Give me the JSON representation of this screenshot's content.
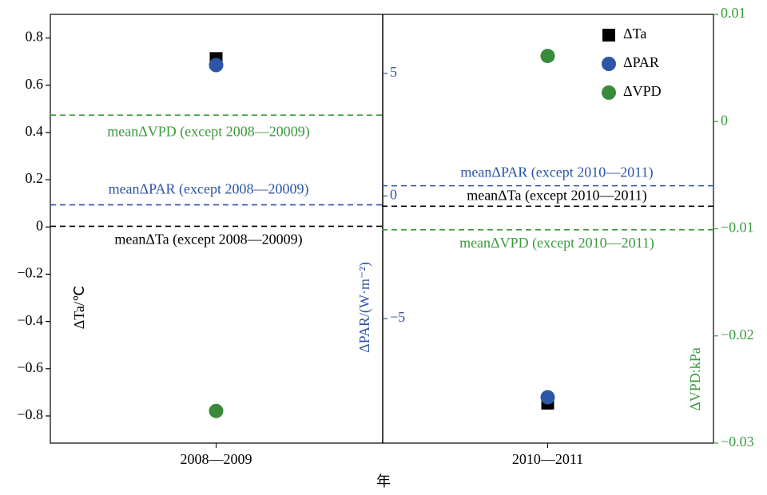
{
  "chart_data": {
    "type": "scatter",
    "categories": [
      "2008—2009",
      "2010—2011"
    ],
    "x_label": "年",
    "y_label": "ΔTa/℃",
    "y2_label": "ΔPAR/(W·m⁻²)",
    "y3_label": "ΔVPD:kPa",
    "ylim": [
      -0.915,
      0.9
    ],
    "yticks": [
      {
        "value": -0.8,
        "label": "−0.8"
      },
      {
        "value": -0.6,
        "label": "−0.6"
      },
      {
        "value": -0.4,
        "label": "−0.4"
      },
      {
        "value": -0.2,
        "label": "−0.2"
      },
      0,
      0.2,
      0.4,
      0.6,
      0.8
    ],
    "y2lim": [
      -10.08,
      7.41
    ],
    "y2ticks": [
      {
        "value": -5,
        "label": "−5"
      },
      0,
      5
    ],
    "y3lim": [
      -0.03,
      0.01
    ],
    "y3ticks": [
      {
        "value": -0.03,
        "label": "−0.03"
      },
      {
        "value": -0.02,
        "label": "−0.02"
      },
      {
        "value": -0.01,
        "label": "−0.01"
      },
      0,
      0.01
    ],
    "legend": "upper right",
    "series": [
      {
        "name": "ΔTa",
        "color": "#000000",
        "marker": "square",
        "axis": "y",
        "values": [
          0.713,
          -0.746
        ]
      },
      {
        "name": "ΔPAR",
        "color": "#2e56a6",
        "marker": "circle",
        "axis": "y2",
        "values": [
          5.34,
          -8.21
        ]
      },
      {
        "name": "ΔVPD",
        "color": "#3a8a3c",
        "marker": "circle",
        "axis": "y3",
        "values": [
          -0.027,
          0.00612
        ]
      }
    ],
    "mean_lines": [
      [
        {
          "label": "meanΔVPD (except 2008—20009)",
          "value": 0.0006,
          "axis": "y3",
          "color": "#3a9a3c"
        },
        {
          "label": "meanΔPAR (except 2008—20009)",
          "value": -0.36,
          "axis": "y2",
          "color": "#2e56a6"
        },
        {
          "label": "meanΔTa (except 2008—20009)",
          "value": 0.003,
          "axis": "y",
          "color": "#000000"
        }
      ],
      [
        {
          "label": "meanΔPAR (except 2010—2011)",
          "value": 0.42,
          "axis": "y2",
          "color": "#2e56a6"
        },
        {
          "label": "meanΔTa (except 2010—2011)",
          "value": 0.088,
          "axis": "y",
          "color": "#000000"
        },
        {
          "label": "meanΔVPD (except 2010—2011)",
          "value": -0.0101,
          "axis": "y3",
          "color": "#3a9a3c"
        }
      ]
    ]
  }
}
